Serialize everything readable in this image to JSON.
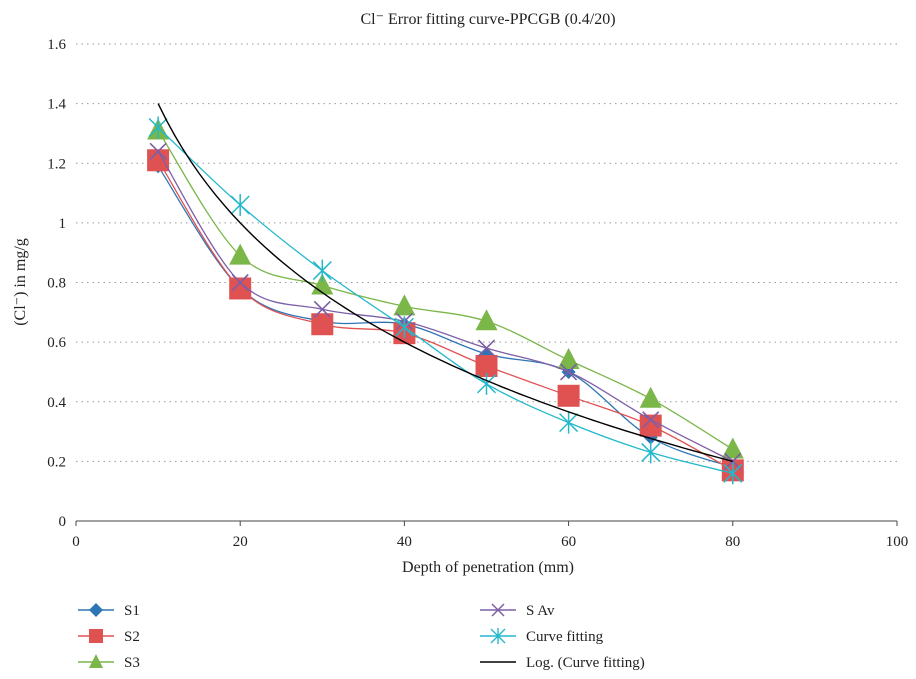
{
  "chart_data": {
    "type": "line",
    "title": "Cl⁻ Error fitting curve-PPCGB (0.4/20)",
    "xlabel": "Depth of penetration (mm)",
    "ylabel": "(Cl⁻) in mg/g",
    "xlim": [
      0,
      100
    ],
    "ylim": [
      0,
      1.6
    ],
    "xticks": [
      "0",
      "20",
      "40",
      "60",
      "80",
      "100"
    ],
    "yticks": [
      "0",
      "0.2",
      "0.4",
      "0.6",
      "0.8",
      "1",
      "1.2",
      "1.4",
      "1.6"
    ],
    "grid": "horizontal dotted",
    "legend_position": "bottom",
    "x": [
      10,
      20,
      30,
      40,
      50,
      60,
      70,
      80
    ],
    "series": [
      {
        "name": "S1",
        "marker": "diamond",
        "color": "#2E75B6",
        "values": [
          1.19,
          0.78,
          0.67,
          0.66,
          0.56,
          0.5,
          0.28,
          0.18
        ]
      },
      {
        "name": "S2",
        "marker": "square",
        "color": "#E05252",
        "values": [
          1.21,
          0.78,
          0.66,
          0.63,
          0.52,
          0.42,
          0.32,
          0.17
        ]
      },
      {
        "name": "S3",
        "marker": "triangle",
        "color": "#7AB648",
        "values": [
          1.31,
          0.89,
          0.79,
          0.72,
          0.67,
          0.54,
          0.41,
          0.24
        ]
      },
      {
        "name": "S Av",
        "marker": "x",
        "color": "#7D5FA6",
        "values": [
          1.24,
          0.8,
          0.71,
          0.67,
          0.58,
          0.5,
          0.34,
          0.2
        ]
      },
      {
        "name": "Curve fitting",
        "marker": "star",
        "color": "#23B8CC",
        "values": [
          1.32,
          1.06,
          0.84,
          0.65,
          0.46,
          0.33,
          0.23,
          0.16
        ]
      },
      {
        "name": "Log. (Curve fitting)",
        "marker": "none",
        "color": "#000000",
        "trend": "log",
        "values": [
          1.4,
          1.0,
          0.77,
          0.6,
          0.47,
          0.37,
          0.28,
          0.2
        ]
      }
    ]
  }
}
